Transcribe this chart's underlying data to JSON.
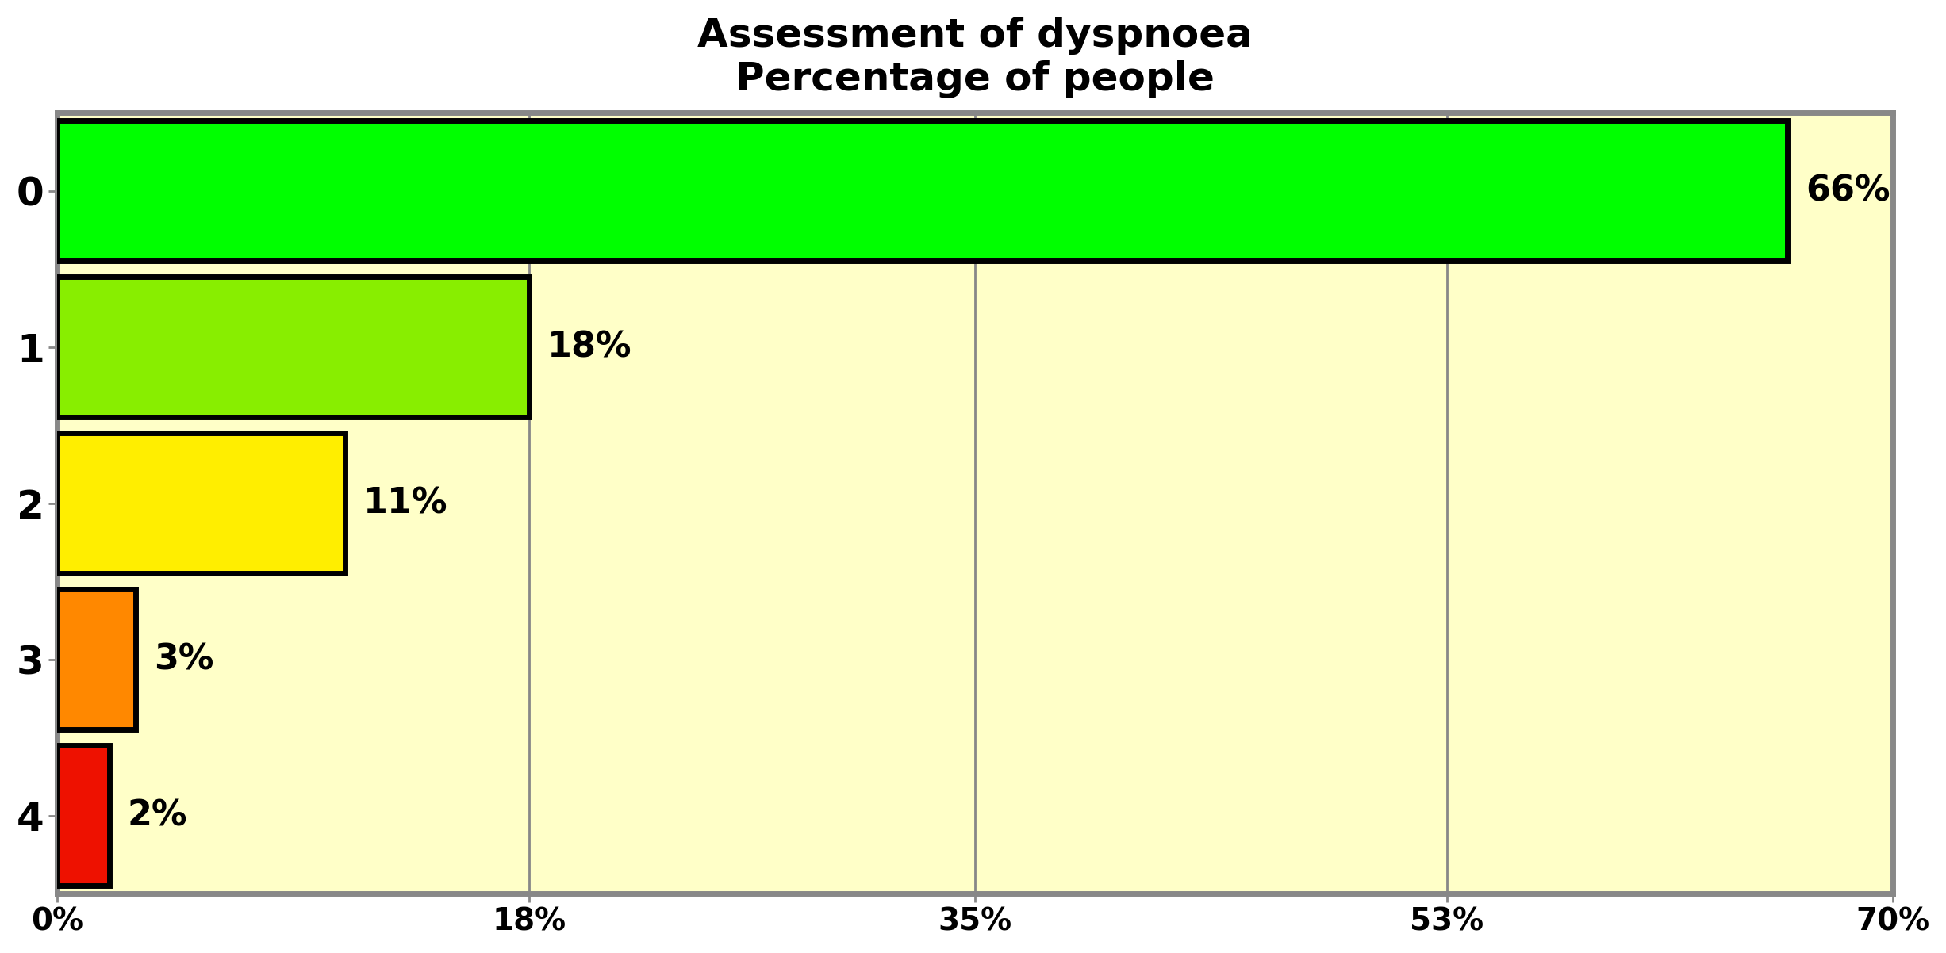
{
  "title_line1": "Assessment of dyspnoea",
  "title_line2": "Percentage of people",
  "categories": [
    "0",
    "1",
    "2",
    "3",
    "4"
  ],
  "values": [
    66,
    18,
    11,
    3,
    2
  ],
  "labels": [
    "66%",
    "18%",
    "11%",
    "3%",
    "2%"
  ],
  "bar_colors": [
    "#00ff00",
    "#88ee00",
    "#ffee00",
    "#ff8800",
    "#ee1100"
  ],
  "bar_edgecolor": "#000000",
  "background_color": "#ffffc8",
  "figure_background": "#ffffff",
  "xlim": [
    0,
    70
  ],
  "xtick_positions": [
    0,
    18,
    35,
    53,
    70
  ],
  "xtick_labels": [
    "0%",
    "18%",
    "35%",
    "53%",
    "70%"
  ],
  "title_fontsize": 36,
  "tick_fontsize": 28,
  "label_fontsize": 32,
  "ytick_fontsize": 36,
  "bar_linewidth": 5.0,
  "bar_height": 0.9,
  "grid_color": "#888888",
  "grid_linewidth": 2.0,
  "spine_color": "#888888",
  "spine_linewidth": 5.0
}
